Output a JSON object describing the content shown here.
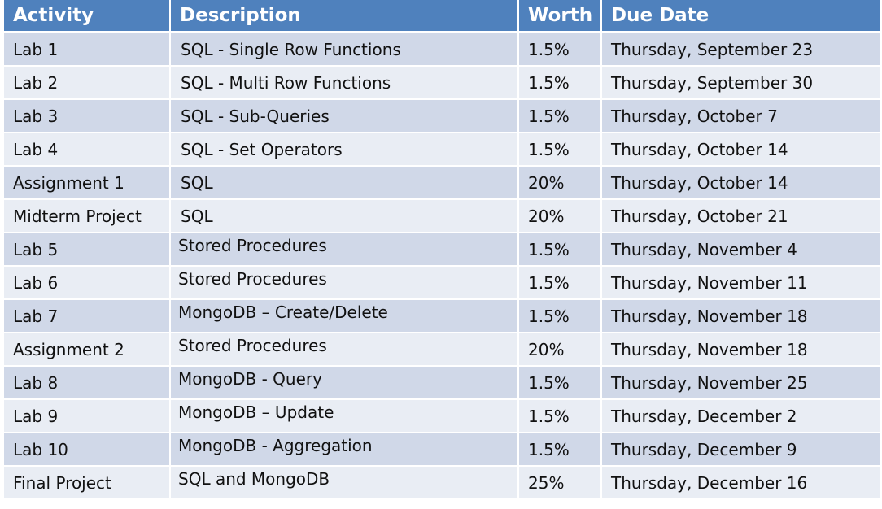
{
  "table": {
    "headers": {
      "activity": "Activity",
      "description": "Description",
      "worth": "Worth",
      "due_date": "Due Date"
    },
    "rows": [
      {
        "activity": "Lab 1",
        "description": "SQL - Single Row Functions",
        "worth": "1.5%",
        "due_date": "Thursday, September 23"
      },
      {
        "activity": "Lab 2",
        "description": "SQL - Multi Row Functions",
        "worth": "1.5%",
        "due_date": "Thursday, September 30"
      },
      {
        "activity": "Lab 3",
        "description": "SQL - Sub-Queries",
        "worth": "1.5%",
        "due_date": "Thursday, October 7"
      },
      {
        "activity": "Lab 4",
        "description": "SQL - Set Operators",
        "worth": "1.5%",
        "due_date": "Thursday, October 14"
      },
      {
        "activity": "Assignment 1",
        "description": "SQL",
        "worth": "20%",
        "due_date": "Thursday, October 14"
      },
      {
        "activity": "Midterm Project",
        "description": "SQL",
        "worth": "20%",
        "due_date": "Thursday, October 21"
      },
      {
        "activity": "Lab 5",
        "description": "Stored Procedures",
        "worth": "1.5%",
        "due_date": "Thursday, November 4"
      },
      {
        "activity": "Lab 6",
        "description": "Stored Procedures",
        "worth": "1.5%",
        "due_date": "Thursday, November 11"
      },
      {
        "activity": "Lab 7",
        "description": "MongoDB – Create/Delete",
        "worth": "1.5%",
        "due_date": "Thursday, November 18"
      },
      {
        "activity": "Assignment 2",
        "description": "Stored Procedures",
        "worth": "20%",
        "due_date": "Thursday, November 18"
      },
      {
        "activity": "Lab 8",
        "description": "MongoDB - Query",
        "worth": "1.5%",
        "due_date": "Thursday, November 25"
      },
      {
        "activity": "Lab 9",
        "description": "MongoDB – Update",
        "worth": "1.5%",
        "due_date": "Thursday, December 2"
      },
      {
        "activity": "Lab 10",
        "description": "MongoDB - Aggregation",
        "worth": "1.5%",
        "due_date": "Thursday, December 9"
      },
      {
        "activity": "Final Project",
        "description": "SQL and MongoDB",
        "worth": "25%",
        "due_date": "Thursday, December 16"
      }
    ]
  },
  "colors": {
    "header_bg": "#4f81bd",
    "header_text": "#ffffff",
    "row_odd_bg": "#d0d8e8",
    "row_even_bg": "#e9edf4"
  }
}
